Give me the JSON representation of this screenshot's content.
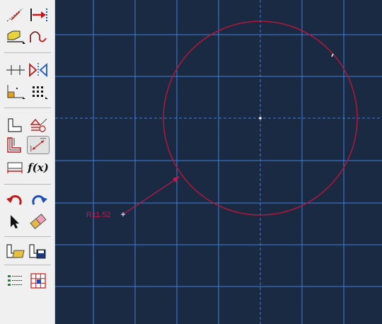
{
  "sketch": {
    "dimension_label": "R11.52"
  },
  "toolbar": {
    "tools": [
      {
        "name": "create-line-icon"
      },
      {
        "name": "add-constraint-arrow-icon"
      },
      {
        "name": "create-shape-icon"
      },
      {
        "name": "create-spline-icon"
      },
      {
        "name": "split-line-icon"
      },
      {
        "name": "mirror-icon"
      },
      {
        "name": "reference-point-icon"
      },
      {
        "name": "grid-points-icon"
      },
      {
        "name": "profile-icon"
      },
      {
        "name": "constraint-symbol-icon"
      },
      {
        "name": "offset-icon"
      },
      {
        "name": "radial-dimension-icon"
      },
      {
        "name": "edit-dimension-icon"
      },
      {
        "name": "function-icon"
      },
      {
        "name": "undo-icon"
      },
      {
        "name": "redo-icon"
      },
      {
        "name": "select-arrow-icon"
      },
      {
        "name": "eraser-icon"
      },
      {
        "name": "open-sketch-icon"
      },
      {
        "name": "save-sketch-icon"
      },
      {
        "name": "list-options-icon"
      },
      {
        "name": "table-icon"
      }
    ],
    "function_label": "f(x)"
  },
  "colors": {
    "background": "#1b2a43",
    "grid": "#3f7fd9",
    "circle": "#b0183a",
    "dimension": "#c0184a"
  }
}
